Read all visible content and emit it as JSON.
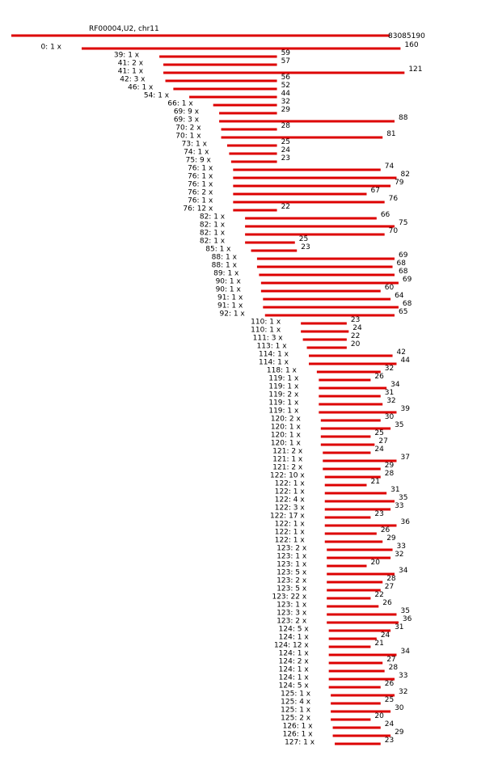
{
  "title": "RF00004,U2, chr11",
  "reference": {
    "coordinate": "83085190",
    "length": 480
  },
  "colors": {
    "read": "#dd0000",
    "text": "#000000",
    "background": "#ffffff"
  },
  "reads": [
    {
      "start": 0,
      "count": "1 x",
      "length": 160
    },
    {
      "start": 39,
      "count": "1 x",
      "length": 59
    },
    {
      "start": 41,
      "count": "2 x",
      "length": 57
    },
    {
      "start": 41,
      "count": "1 x",
      "length": 121
    },
    {
      "start": 42,
      "count": "3 x",
      "length": 56
    },
    {
      "start": 46,
      "count": "1 x",
      "length": 52
    },
    {
      "start": 54,
      "count": "1 x",
      "length": 44
    },
    {
      "start": 66,
      "count": "1 x",
      "length": 32
    },
    {
      "start": 69,
      "count": "9 x",
      "length": 29
    },
    {
      "start": 69,
      "count": "3 x",
      "length": 88
    },
    {
      "start": 70,
      "count": "2 x",
      "length": 28
    },
    {
      "start": 70,
      "count": "1 x",
      "length": 81
    },
    {
      "start": 73,
      "count": "1 x",
      "length": 25
    },
    {
      "start": 74,
      "count": "1 x",
      "length": 24
    },
    {
      "start": 75,
      "count": "9 x",
      "length": 23
    },
    {
      "start": 76,
      "count": "1 x",
      "length": 74
    },
    {
      "start": 76,
      "count": "1 x",
      "length": 82
    },
    {
      "start": 76,
      "count": "1 x",
      "length": 79
    },
    {
      "start": 76,
      "count": "2 x",
      "length": 67
    },
    {
      "start": 76,
      "count": "1 x",
      "length": 76
    },
    {
      "start": 76,
      "count": "12 x",
      "length": 22
    },
    {
      "start": 82,
      "count": "1 x",
      "length": 66
    },
    {
      "start": 82,
      "count": "1 x",
      "length": 75
    },
    {
      "start": 82,
      "count": "1 x",
      "length": 70
    },
    {
      "start": 82,
      "count": "1 x",
      "length": 25
    },
    {
      "start": 85,
      "count": "1 x",
      "length": 23
    },
    {
      "start": 88,
      "count": "1 x",
      "length": 69
    },
    {
      "start": 88,
      "count": "1 x",
      "length": 68
    },
    {
      "start": 89,
      "count": "1 x",
      "length": 68
    },
    {
      "start": 90,
      "count": "1 x",
      "length": 69
    },
    {
      "start": 90,
      "count": "1 x",
      "length": 60
    },
    {
      "start": 91,
      "count": "1 x",
      "length": 64
    },
    {
      "start": 91,
      "count": "1 x",
      "length": 68
    },
    {
      "start": 92,
      "count": "1 x",
      "length": 65
    },
    {
      "start": 110,
      "count": "1 x",
      "length": 23
    },
    {
      "start": 110,
      "count": "1 x",
      "length": 24
    },
    {
      "start": 111,
      "count": "3 x",
      "length": 22
    },
    {
      "start": 113,
      "count": "1 x",
      "length": 20
    },
    {
      "start": 114,
      "count": "1 x",
      "length": 42
    },
    {
      "start": 114,
      "count": "1 x",
      "length": 44
    },
    {
      "start": 118,
      "count": "1 x",
      "length": 32
    },
    {
      "start": 119,
      "count": "1 x",
      "length": 26
    },
    {
      "start": 119,
      "count": "1 x",
      "length": 34
    },
    {
      "start": 119,
      "count": "2 x",
      "length": 31
    },
    {
      "start": 119,
      "count": "1 x",
      "length": 32
    },
    {
      "start": 119,
      "count": "1 x",
      "length": 39
    },
    {
      "start": 120,
      "count": "2 x",
      "length": 30
    },
    {
      "start": 120,
      "count": "1 x",
      "length": 35
    },
    {
      "start": 120,
      "count": "1 x",
      "length": 25
    },
    {
      "start": 120,
      "count": "1 x",
      "length": 27
    },
    {
      "start": 121,
      "count": "2 x",
      "length": 24
    },
    {
      "start": 121,
      "count": "1 x",
      "length": 37
    },
    {
      "start": 121,
      "count": "2 x",
      "length": 29
    },
    {
      "start": 122,
      "count": "10 x",
      "length": 28
    },
    {
      "start": 122,
      "count": "1 x",
      "length": 21
    },
    {
      "start": 122,
      "count": "1 x",
      "length": 31
    },
    {
      "start": 122,
      "count": "4 x",
      "length": 35
    },
    {
      "start": 122,
      "count": "3 x",
      "length": 33
    },
    {
      "start": 122,
      "count": "17 x",
      "length": 23
    },
    {
      "start": 122,
      "count": "1 x",
      "length": 36
    },
    {
      "start": 122,
      "count": "1 x",
      "length": 26
    },
    {
      "start": 122,
      "count": "1 x",
      "length": 29
    },
    {
      "start": 123,
      "count": "2 x",
      "length": 33
    },
    {
      "start": 123,
      "count": "1 x",
      "length": 32
    },
    {
      "start": 123,
      "count": "1 x",
      "length": 20
    },
    {
      "start": 123,
      "count": "5 x",
      "length": 34
    },
    {
      "start": 123,
      "count": "2 x",
      "length": 28
    },
    {
      "start": 123,
      "count": "5 x",
      "length": 27
    },
    {
      "start": 123,
      "count": "22 x",
      "length": 22
    },
    {
      "start": 123,
      "count": "1 x",
      "length": 26
    },
    {
      "start": 123,
      "count": "3 x",
      "length": 35
    },
    {
      "start": 123,
      "count": "2 x",
      "length": 36
    },
    {
      "start": 124,
      "count": "5 x",
      "length": 31
    },
    {
      "start": 124,
      "count": "1 x",
      "length": 24
    },
    {
      "start": 124,
      "count": "12 x",
      "length": 21
    },
    {
      "start": 124,
      "count": "1 x",
      "length": 34
    },
    {
      "start": 124,
      "count": "2 x",
      "length": 27
    },
    {
      "start": 124,
      "count": "1 x",
      "length": 28
    },
    {
      "start": 124,
      "count": "1 x",
      "length": 33
    },
    {
      "start": 124,
      "count": "5 x",
      "length": 26
    },
    {
      "start": 125,
      "count": "1 x",
      "length": 32
    },
    {
      "start": 125,
      "count": "4 x",
      "length": 25
    },
    {
      "start": 125,
      "count": "1 x",
      "length": 30
    },
    {
      "start": 125,
      "count": "2 x",
      "length": 20
    },
    {
      "start": 126,
      "count": "1 x",
      "length": 24
    },
    {
      "start": 126,
      "count": "1 x",
      "length": 29
    },
    {
      "start": 127,
      "count": "1 x",
      "length": 23
    }
  ]
}
